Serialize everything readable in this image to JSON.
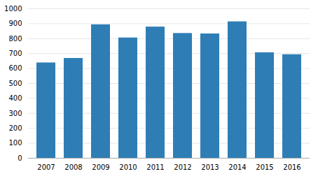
{
  "chart_data": {
    "type": "bar",
    "categories": [
      "2007",
      "2008",
      "2009",
      "2010",
      "2011",
      "2012",
      "2013",
      "2014",
      "2015",
      "2016"
    ],
    "values": [
      638,
      668,
      893,
      805,
      878,
      835,
      832,
      913,
      706,
      693
    ],
    "color": "#2e7eb5",
    "ylim": [
      0,
      1000
    ],
    "yticks": [
      0,
      100,
      200,
      300,
      400,
      500,
      600,
      700,
      800,
      900,
      1000
    ],
    "grid": true
  }
}
